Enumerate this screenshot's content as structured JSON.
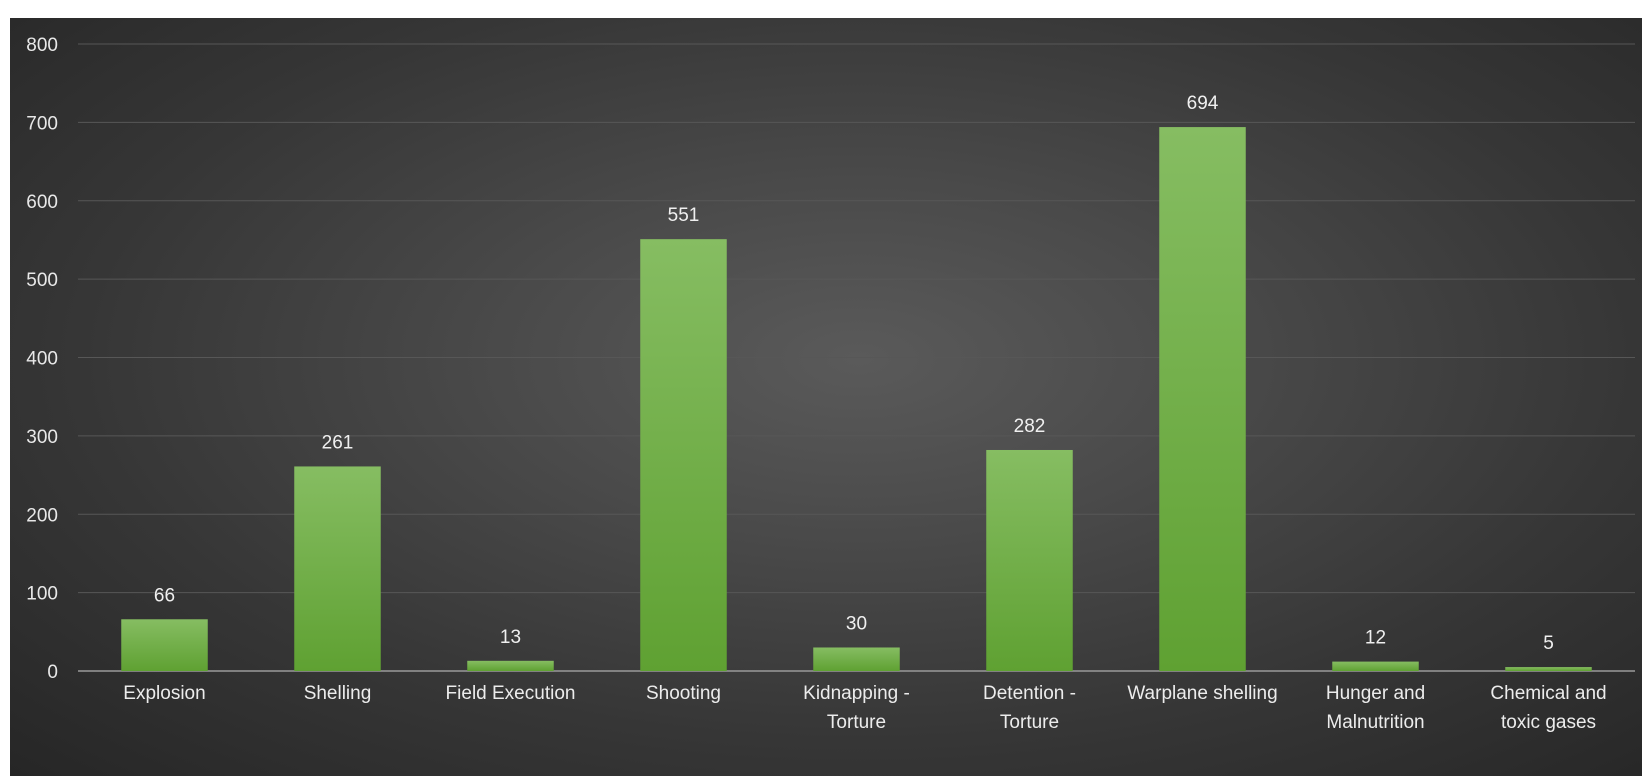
{
  "chart_data": {
    "type": "bar",
    "categories": [
      [
        "Explosion"
      ],
      [
        "Shelling"
      ],
      [
        "Field Execution"
      ],
      [
        "Shooting"
      ],
      [
        "Kidnapping -",
        "Torture"
      ],
      [
        "Detention -",
        "Torture"
      ],
      [
        "Warplane shelling"
      ],
      [
        "Hunger and",
        "Malnutrition"
      ],
      [
        "Chemical and",
        "toxic gases"
      ]
    ],
    "values": [
      66,
      261,
      13,
      551,
      30,
      282,
      694,
      12,
      5
    ],
    "ylim": [
      0,
      800
    ],
    "yticks": [
      0,
      100,
      200,
      300,
      400,
      500,
      600,
      700,
      800
    ],
    "grid": true,
    "data_labels": true,
    "bar_color_top": "#86bd62",
    "bar_color_bottom": "#5fa132",
    "background": "#3d3d3d"
  }
}
